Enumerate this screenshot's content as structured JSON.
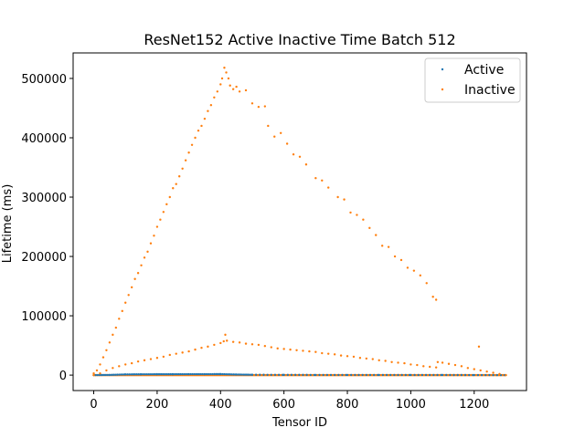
{
  "chart_data": {
    "type": "scatter",
    "title": "ResNet152 Active Inactive Time Batch 512",
    "xlabel": "Tensor ID",
    "ylabel": "Lifetime (ms)",
    "xlim": [
      -65,
      1365
    ],
    "ylim": [
      -26000,
      543000
    ],
    "x_ticks": [
      0,
      200,
      400,
      600,
      800,
      1000,
      1200
    ],
    "y_ticks": [
      0,
      100000,
      200000,
      300000,
      400000,
      500000
    ],
    "legend_position": "top-right",
    "grid": false,
    "series": [
      {
        "name": "Active",
        "color": "#1f77b4",
        "points": [
          [
            0,
            0
          ],
          [
            50,
            300
          ],
          [
            100,
            1200
          ],
          [
            150,
            1400
          ],
          [
            200,
            1500
          ],
          [
            250,
            1500
          ],
          [
            300,
            1600
          ],
          [
            350,
            1600
          ],
          [
            400,
            1700
          ],
          [
            450,
            1000
          ],
          [
            500,
            600
          ],
          [
            600,
            400
          ],
          [
            700,
            300
          ],
          [
            800,
            300
          ],
          [
            900,
            300
          ],
          [
            1000,
            200
          ],
          [
            1100,
            200
          ],
          [
            1200,
            100
          ],
          [
            1300,
            0
          ]
        ]
      },
      {
        "name": "Inactive",
        "color": "#ff7f0e",
        "upper_arm": [
          [
            0,
            3000
          ],
          [
            10,
            8000
          ],
          [
            20,
            18000
          ],
          [
            30,
            30000
          ],
          [
            40,
            42000
          ],
          [
            50,
            55000
          ],
          [
            60,
            68000
          ],
          [
            70,
            80000
          ],
          [
            80,
            95000
          ],
          [
            90,
            108000
          ],
          [
            100,
            122000
          ],
          [
            110,
            135000
          ],
          [
            120,
            148000
          ],
          [
            130,
            162000
          ],
          [
            140,
            172000
          ],
          [
            150,
            185000
          ],
          [
            160,
            198000
          ],
          [
            170,
            208000
          ],
          [
            180,
            222000
          ],
          [
            190,
            235000
          ],
          [
            200,
            250000
          ],
          [
            210,
            262000
          ],
          [
            220,
            275000
          ],
          [
            230,
            288000
          ],
          [
            240,
            300000
          ],
          [
            250,
            315000
          ],
          [
            260,
            322000
          ],
          [
            270,
            335000
          ],
          [
            280,
            348000
          ],
          [
            290,
            362000
          ],
          [
            300,
            375000
          ],
          [
            310,
            388000
          ],
          [
            320,
            400000
          ],
          [
            330,
            412000
          ],
          [
            340,
            420000
          ],
          [
            350,
            432000
          ],
          [
            360,
            445000
          ],
          [
            370,
            455000
          ],
          [
            380,
            468000
          ],
          [
            390,
            478000
          ],
          [
            400,
            490000
          ],
          [
            405,
            500000
          ],
          [
            412,
            518000
          ]
        ],
        "upper_descent": [
          [
            418,
            510000
          ],
          [
            425,
            500000
          ],
          [
            430,
            488000
          ],
          [
            440,
            482000
          ],
          [
            450,
            486000
          ],
          [
            460,
            478000
          ],
          [
            480,
            480000
          ],
          [
            500,
            458000
          ],
          [
            520,
            452000
          ],
          [
            540,
            453000
          ],
          [
            550,
            420000
          ],
          [
            570,
            402000
          ],
          [
            590,
            408000
          ],
          [
            610,
            390000
          ],
          [
            630,
            372000
          ],
          [
            650,
            368000
          ],
          [
            670,
            355000
          ],
          [
            700,
            332000
          ],
          [
            720,
            328000
          ],
          [
            740,
            316000
          ],
          [
            770,
            300000
          ],
          [
            790,
            296000
          ],
          [
            810,
            274000
          ],
          [
            830,
            270000
          ],
          [
            850,
            262000
          ],
          [
            870,
            248000
          ],
          [
            890,
            236000
          ],
          [
            910,
            218000
          ],
          [
            930,
            216000
          ],
          [
            950,
            200000
          ],
          [
            970,
            194000
          ],
          [
            990,
            181000
          ],
          [
            1010,
            176000
          ],
          [
            1030,
            168000
          ],
          [
            1050,
            155000
          ],
          [
            1070,
            132000
          ],
          [
            1080,
            127000
          ]
        ],
        "lower_band": [
          [
            0,
            0
          ],
          [
            20,
            3000
          ],
          [
            40,
            8000
          ],
          [
            60,
            12000
          ],
          [
            80,
            15000
          ],
          [
            100,
            18000
          ],
          [
            120,
            20000
          ],
          [
            140,
            23000
          ],
          [
            160,
            25000
          ],
          [
            180,
            27000
          ],
          [
            200,
            29000
          ],
          [
            220,
            31000
          ],
          [
            240,
            34000
          ],
          [
            260,
            36000
          ],
          [
            280,
            38000
          ],
          [
            300,
            40000
          ],
          [
            320,
            43000
          ],
          [
            340,
            46000
          ],
          [
            360,
            48000
          ],
          [
            380,
            51000
          ],
          [
            400,
            54000
          ],
          [
            410,
            57000
          ],
          [
            415,
            68000
          ],
          [
            420,
            58000
          ],
          [
            440,
            56000
          ],
          [
            460,
            55000
          ],
          [
            480,
            53000
          ],
          [
            500,
            52000
          ],
          [
            520,
            51000
          ],
          [
            540,
            49000
          ],
          [
            560,
            47000
          ],
          [
            580,
            45000
          ],
          [
            600,
            44000
          ],
          [
            620,
            43000
          ],
          [
            640,
            42000
          ],
          [
            660,
            41000
          ],
          [
            680,
            40000
          ],
          [
            700,
            39000
          ],
          [
            720,
            37000
          ],
          [
            740,
            36000
          ],
          [
            760,
            35000
          ],
          [
            780,
            33000
          ],
          [
            800,
            32000
          ],
          [
            820,
            31000
          ],
          [
            840,
            29000
          ],
          [
            860,
            28000
          ],
          [
            880,
            27000
          ],
          [
            900,
            25000
          ],
          [
            920,
            24000
          ],
          [
            940,
            22000
          ],
          [
            960,
            21000
          ],
          [
            980,
            20000
          ],
          [
            1000,
            18000
          ],
          [
            1020,
            17000
          ],
          [
            1040,
            15000
          ],
          [
            1060,
            14000
          ],
          [
            1080,
            13000
          ],
          [
            1085,
            22000
          ],
          [
            1100,
            21000
          ],
          [
            1120,
            19000
          ],
          [
            1140,
            17000
          ],
          [
            1160,
            15000
          ],
          [
            1180,
            12000
          ],
          [
            1200,
            10000
          ],
          [
            1215,
            48000
          ],
          [
            1220,
            8000
          ],
          [
            1240,
            6000
          ],
          [
            1260,
            4000
          ],
          [
            1280,
            2000
          ],
          [
            1300,
            0
          ]
        ],
        "dense_baseline": {
          "x_start": 0,
          "x_end": 1300,
          "y": 0
        }
      }
    ]
  }
}
